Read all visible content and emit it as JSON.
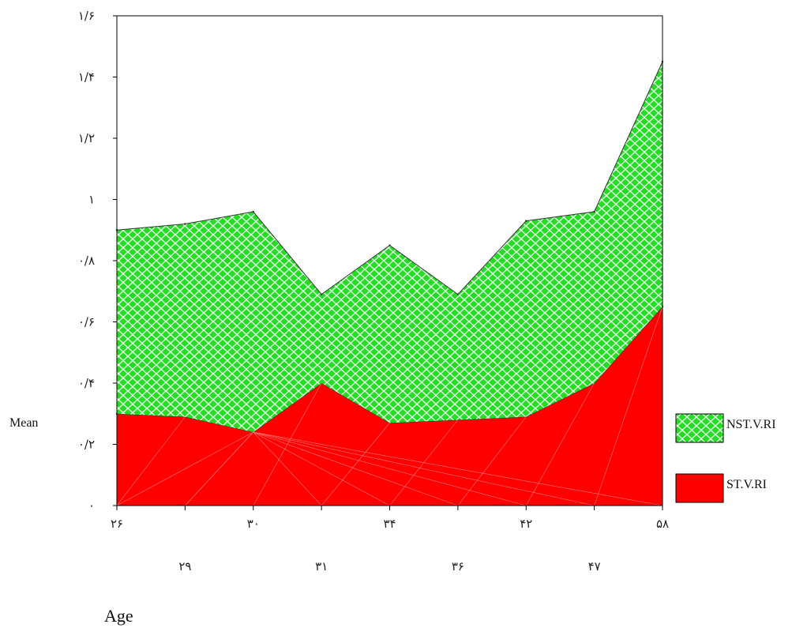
{
  "chart_data": {
    "type": "area",
    "stacked": true,
    "title": "",
    "xlabel": "Age",
    "ylabel": "Mean",
    "categories": [
      "۲۶",
      "۲۹",
      "۳۰",
      "۳۱",
      "۳۴",
      "۳۶",
      "۴۲",
      "۴۷",
      "۵۸"
    ],
    "series": [
      {
        "name": "ST.V.RI",
        "color": "#ff0000",
        "values": [
          0.3,
          0.29,
          0.24,
          0.4,
          0.27,
          0.28,
          0.29,
          0.4,
          0.65
        ]
      },
      {
        "name": "NST.V.RI",
        "color": "#22dd22",
        "pattern": "lattice",
        "values": [
          0.6,
          0.63,
          0.72,
          0.29,
          0.58,
          0.41,
          0.64,
          0.56,
          0.8
        ]
      }
    ],
    "ylim": [
      0,
      1.6
    ],
    "yticks": [
      {
        "value": 0,
        "label": "۰"
      },
      {
        "value": 0.2,
        "label": "۰/۲"
      },
      {
        "value": 0.4,
        "label": "۰/۴"
      },
      {
        "value": 0.6,
        "label": "۰/۶"
      },
      {
        "value": 0.8,
        "label": "۰/۸"
      },
      {
        "value": 1.0,
        "label": "۱"
      },
      {
        "value": 1.2,
        "label": "۱/۲"
      },
      {
        "value": 1.4,
        "label": "۱/۴"
      },
      {
        "value": 1.6,
        "label": "۱/۶"
      }
    ],
    "legend": {
      "position": "right",
      "order": [
        "NST.V.RI",
        "ST.V.RI"
      ]
    },
    "grid": false
  }
}
